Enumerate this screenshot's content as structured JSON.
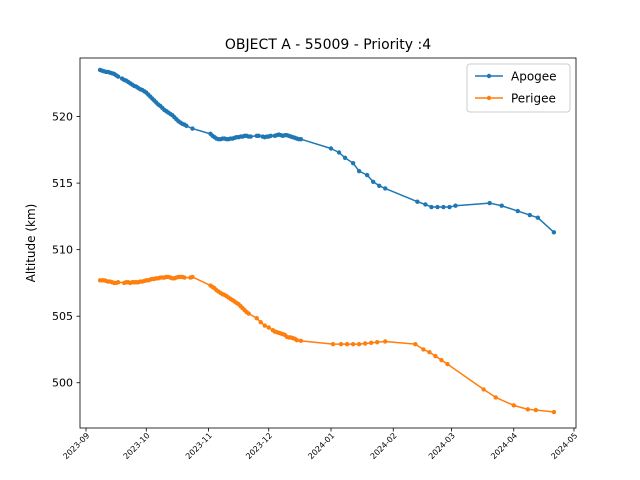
{
  "chart_data": {
    "type": "line",
    "title": "OBJECT A - 55009 - Priority :4",
    "xlabel": "",
    "ylabel": "Altitude (km)",
    "x_ticks": [
      "2023-09",
      "2023-10",
      "2023-11",
      "2023-12",
      "2024-01",
      "2024-02",
      "2024-03",
      "2024-04",
      "2024-05"
    ],
    "y_ticks": [
      500,
      505,
      510,
      515,
      520
    ],
    "xlim": [
      "2023-08-29",
      "2024-05-02"
    ],
    "ylim": [
      496.6,
      524.4
    ],
    "grid": false,
    "legend_position": "top-right",
    "series": [
      {
        "name": "Apogee",
        "color": "#1f77b4",
        "points": [
          [
            "2023-09-08",
            523.5
          ],
          [
            "2023-09-09",
            523.45
          ],
          [
            "2023-09-10",
            523.4
          ],
          [
            "2023-09-11",
            523.35
          ],
          [
            "2023-09-12",
            523.35
          ],
          [
            "2023-09-13",
            523.3
          ],
          [
            "2023-09-14",
            523.25
          ],
          [
            "2023-09-15",
            523.2
          ],
          [
            "2023-09-16",
            523.1
          ],
          [
            "2023-09-17",
            523.0
          ],
          [
            "2023-09-19",
            522.85
          ],
          [
            "2023-09-20",
            522.75
          ],
          [
            "2023-09-21",
            522.7
          ],
          [
            "2023-09-22",
            522.6
          ],
          [
            "2023-09-23",
            522.5
          ],
          [
            "2023-09-24",
            522.4
          ],
          [
            "2023-09-25",
            522.3
          ],
          [
            "2023-09-26",
            522.25
          ],
          [
            "2023-09-27",
            522.15
          ],
          [
            "2023-09-28",
            522.05
          ],
          [
            "2023-09-29",
            522.0
          ],
          [
            "2023-09-30",
            521.9
          ],
          [
            "2023-10-01",
            521.8
          ],
          [
            "2023-10-02",
            521.65
          ],
          [
            "2023-10-03",
            521.5
          ],
          [
            "2023-10-04",
            521.35
          ],
          [
            "2023-10-05",
            521.2
          ],
          [
            "2023-10-06",
            521.05
          ],
          [
            "2023-10-07",
            520.9
          ],
          [
            "2023-10-08",
            520.8
          ],
          [
            "2023-10-09",
            520.65
          ],
          [
            "2023-10-10",
            520.5
          ],
          [
            "2023-10-11",
            520.4
          ],
          [
            "2023-10-12",
            520.3
          ],
          [
            "2023-10-13",
            520.2
          ],
          [
            "2023-10-14",
            520.1
          ],
          [
            "2023-10-15",
            519.95
          ],
          [
            "2023-10-16",
            519.8
          ],
          [
            "2023-10-17",
            519.65
          ],
          [
            "2023-10-18",
            519.55
          ],
          [
            "2023-10-19",
            519.45
          ],
          [
            "2023-10-20",
            519.4
          ],
          [
            "2023-10-21",
            519.3
          ],
          [
            "2023-10-24",
            519.1
          ],
          [
            "2023-11-02",
            518.7
          ],
          [
            "2023-11-03",
            518.55
          ],
          [
            "2023-11-04",
            518.45
          ],
          [
            "2023-11-05",
            518.35
          ],
          [
            "2023-11-06",
            518.3
          ],
          [
            "2023-11-07",
            518.3
          ],
          [
            "2023-11-08",
            518.35
          ],
          [
            "2023-11-09",
            518.35
          ],
          [
            "2023-11-10",
            518.3
          ],
          [
            "2023-11-11",
            518.3
          ],
          [
            "2023-11-12",
            518.35
          ],
          [
            "2023-11-13",
            518.35
          ],
          [
            "2023-11-14",
            518.4
          ],
          [
            "2023-11-15",
            518.45
          ],
          [
            "2023-11-16",
            518.45
          ],
          [
            "2023-11-17",
            518.5
          ],
          [
            "2023-11-18",
            518.5
          ],
          [
            "2023-11-19",
            518.55
          ],
          [
            "2023-11-20",
            518.55
          ],
          [
            "2023-11-21",
            518.5
          ],
          [
            "2023-11-22",
            518.5
          ],
          [
            "2023-11-25",
            518.55
          ],
          [
            "2023-11-26",
            518.55
          ],
          [
            "2023-11-28",
            518.5
          ],
          [
            "2023-11-29",
            518.45
          ],
          [
            "2023-11-30",
            518.5
          ],
          [
            "2023-12-01",
            518.5
          ],
          [
            "2023-12-02",
            518.55
          ],
          [
            "2023-12-04",
            518.55
          ],
          [
            "2023-12-05",
            518.6
          ],
          [
            "2023-12-06",
            518.65
          ],
          [
            "2023-12-07",
            518.6
          ],
          [
            "2023-12-08",
            518.55
          ],
          [
            "2023-12-09",
            518.6
          ],
          [
            "2023-12-10",
            518.6
          ],
          [
            "2023-12-11",
            518.55
          ],
          [
            "2023-12-12",
            518.5
          ],
          [
            "2023-12-13",
            518.45
          ],
          [
            "2023-12-14",
            518.4
          ],
          [
            "2023-12-15",
            518.35
          ],
          [
            "2023-12-16",
            518.3
          ],
          [
            "2023-12-17",
            518.3
          ],
          [
            "2024-01-01",
            517.6
          ],
          [
            "2024-01-05",
            517.3
          ],
          [
            "2024-01-08",
            516.9
          ],
          [
            "2024-01-12",
            516.5
          ],
          [
            "2024-01-15",
            515.9
          ],
          [
            "2024-01-19",
            515.6
          ],
          [
            "2024-01-22",
            515.1
          ],
          [
            "2024-01-25",
            514.8
          ],
          [
            "2024-01-28",
            514.6
          ],
          [
            "2024-02-13",
            513.6
          ],
          [
            "2024-02-17",
            513.4
          ],
          [
            "2024-02-20",
            513.2
          ],
          [
            "2024-02-23",
            513.2
          ],
          [
            "2024-02-26",
            513.2
          ],
          [
            "2024-02-29",
            513.2
          ],
          [
            "2024-03-03",
            513.3
          ],
          [
            "2024-03-20",
            513.5
          ],
          [
            "2024-03-26",
            513.3
          ],
          [
            "2024-04-03",
            512.9
          ],
          [
            "2024-04-09",
            512.6
          ],
          [
            "2024-04-13",
            512.4
          ],
          [
            "2024-04-21",
            511.3
          ]
        ]
      },
      {
        "name": "Perigee",
        "color": "#ff7f0e",
        "points": [
          [
            "2023-09-08",
            507.7
          ],
          [
            "2023-09-09",
            507.7
          ],
          [
            "2023-09-10",
            507.7
          ],
          [
            "2023-09-11",
            507.65
          ],
          [
            "2023-09-12",
            507.6
          ],
          [
            "2023-09-13",
            507.6
          ],
          [
            "2023-09-14",
            507.55
          ],
          [
            "2023-09-15",
            507.5
          ],
          [
            "2023-09-16",
            507.5
          ],
          [
            "2023-09-17",
            507.55
          ],
          [
            "2023-09-20",
            507.5
          ],
          [
            "2023-09-21",
            507.55
          ],
          [
            "2023-09-22",
            507.55
          ],
          [
            "2023-09-23",
            507.5
          ],
          [
            "2023-09-24",
            507.55
          ],
          [
            "2023-09-25",
            507.55
          ],
          [
            "2023-09-26",
            507.55
          ],
          [
            "2023-09-27",
            507.55
          ],
          [
            "2023-09-28",
            507.6
          ],
          [
            "2023-09-29",
            507.6
          ],
          [
            "2023-09-30",
            507.65
          ],
          [
            "2023-10-01",
            507.7
          ],
          [
            "2023-10-02",
            507.7
          ],
          [
            "2023-10-03",
            507.75
          ],
          [
            "2023-10-04",
            507.8
          ],
          [
            "2023-10-05",
            507.8
          ],
          [
            "2023-10-06",
            507.85
          ],
          [
            "2023-10-07",
            507.85
          ],
          [
            "2023-10-08",
            507.9
          ],
          [
            "2023-10-09",
            507.9
          ],
          [
            "2023-10-10",
            507.9
          ],
          [
            "2023-10-11",
            507.95
          ],
          [
            "2023-10-12",
            507.95
          ],
          [
            "2023-10-13",
            507.9
          ],
          [
            "2023-10-14",
            507.85
          ],
          [
            "2023-10-15",
            507.85
          ],
          [
            "2023-10-16",
            507.9
          ],
          [
            "2023-10-17",
            507.95
          ],
          [
            "2023-10-18",
            507.95
          ],
          [
            "2023-10-19",
            507.95
          ],
          [
            "2023-10-20",
            507.9
          ],
          [
            "2023-10-23",
            507.9
          ],
          [
            "2023-10-24",
            507.95
          ],
          [
            "2023-11-02",
            507.3
          ],
          [
            "2023-11-03",
            507.2
          ],
          [
            "2023-11-04",
            507.1
          ],
          [
            "2023-11-05",
            506.95
          ],
          [
            "2023-11-06",
            506.85
          ],
          [
            "2023-11-07",
            506.75
          ],
          [
            "2023-11-08",
            506.65
          ],
          [
            "2023-11-09",
            506.6
          ],
          [
            "2023-11-10",
            506.5
          ],
          [
            "2023-11-11",
            506.4
          ],
          [
            "2023-11-12",
            506.3
          ],
          [
            "2023-11-13",
            506.2
          ],
          [
            "2023-11-14",
            506.1
          ],
          [
            "2023-11-15",
            506.0
          ],
          [
            "2023-11-16",
            505.9
          ],
          [
            "2023-11-17",
            505.75
          ],
          [
            "2023-11-18",
            505.6
          ],
          [
            "2023-11-19",
            505.45
          ],
          [
            "2023-11-20",
            505.3
          ],
          [
            "2023-11-21",
            505.2
          ],
          [
            "2023-11-25",
            504.85
          ],
          [
            "2023-11-27",
            504.55
          ],
          [
            "2023-11-29",
            504.3
          ],
          [
            "2023-12-01",
            504.15
          ],
          [
            "2023-12-03",
            503.95
          ],
          [
            "2023-12-04",
            503.85
          ],
          [
            "2023-12-05",
            503.8
          ],
          [
            "2023-12-06",
            503.75
          ],
          [
            "2023-12-07",
            503.7
          ],
          [
            "2023-12-08",
            503.65
          ],
          [
            "2023-12-09",
            503.6
          ],
          [
            "2023-12-10",
            503.45
          ],
          [
            "2023-12-11",
            503.4
          ],
          [
            "2023-12-12",
            503.4
          ],
          [
            "2023-12-13",
            503.35
          ],
          [
            "2023-12-14",
            503.3
          ],
          [
            "2023-12-15",
            503.2
          ],
          [
            "2023-12-17",
            503.15
          ],
          [
            "2024-01-02",
            502.9
          ],
          [
            "2024-01-06",
            502.9
          ],
          [
            "2024-01-09",
            502.9
          ],
          [
            "2024-01-12",
            502.9
          ],
          [
            "2024-01-15",
            502.9
          ],
          [
            "2024-01-18",
            502.95
          ],
          [
            "2024-01-21",
            503.0
          ],
          [
            "2024-01-24",
            503.05
          ],
          [
            "2024-01-28",
            503.1
          ],
          [
            "2024-02-12",
            502.9
          ],
          [
            "2024-02-16",
            502.5
          ],
          [
            "2024-02-19",
            502.3
          ],
          [
            "2024-02-22",
            502.0
          ],
          [
            "2024-02-25",
            501.7
          ],
          [
            "2024-02-28",
            501.4
          ],
          [
            "2024-03-17",
            499.5
          ],
          [
            "2024-03-23",
            498.9
          ],
          [
            "2024-04-01",
            498.3
          ],
          [
            "2024-04-08",
            498.0
          ],
          [
            "2024-04-12",
            497.95
          ],
          [
            "2024-04-21",
            497.8
          ]
        ]
      }
    ]
  }
}
